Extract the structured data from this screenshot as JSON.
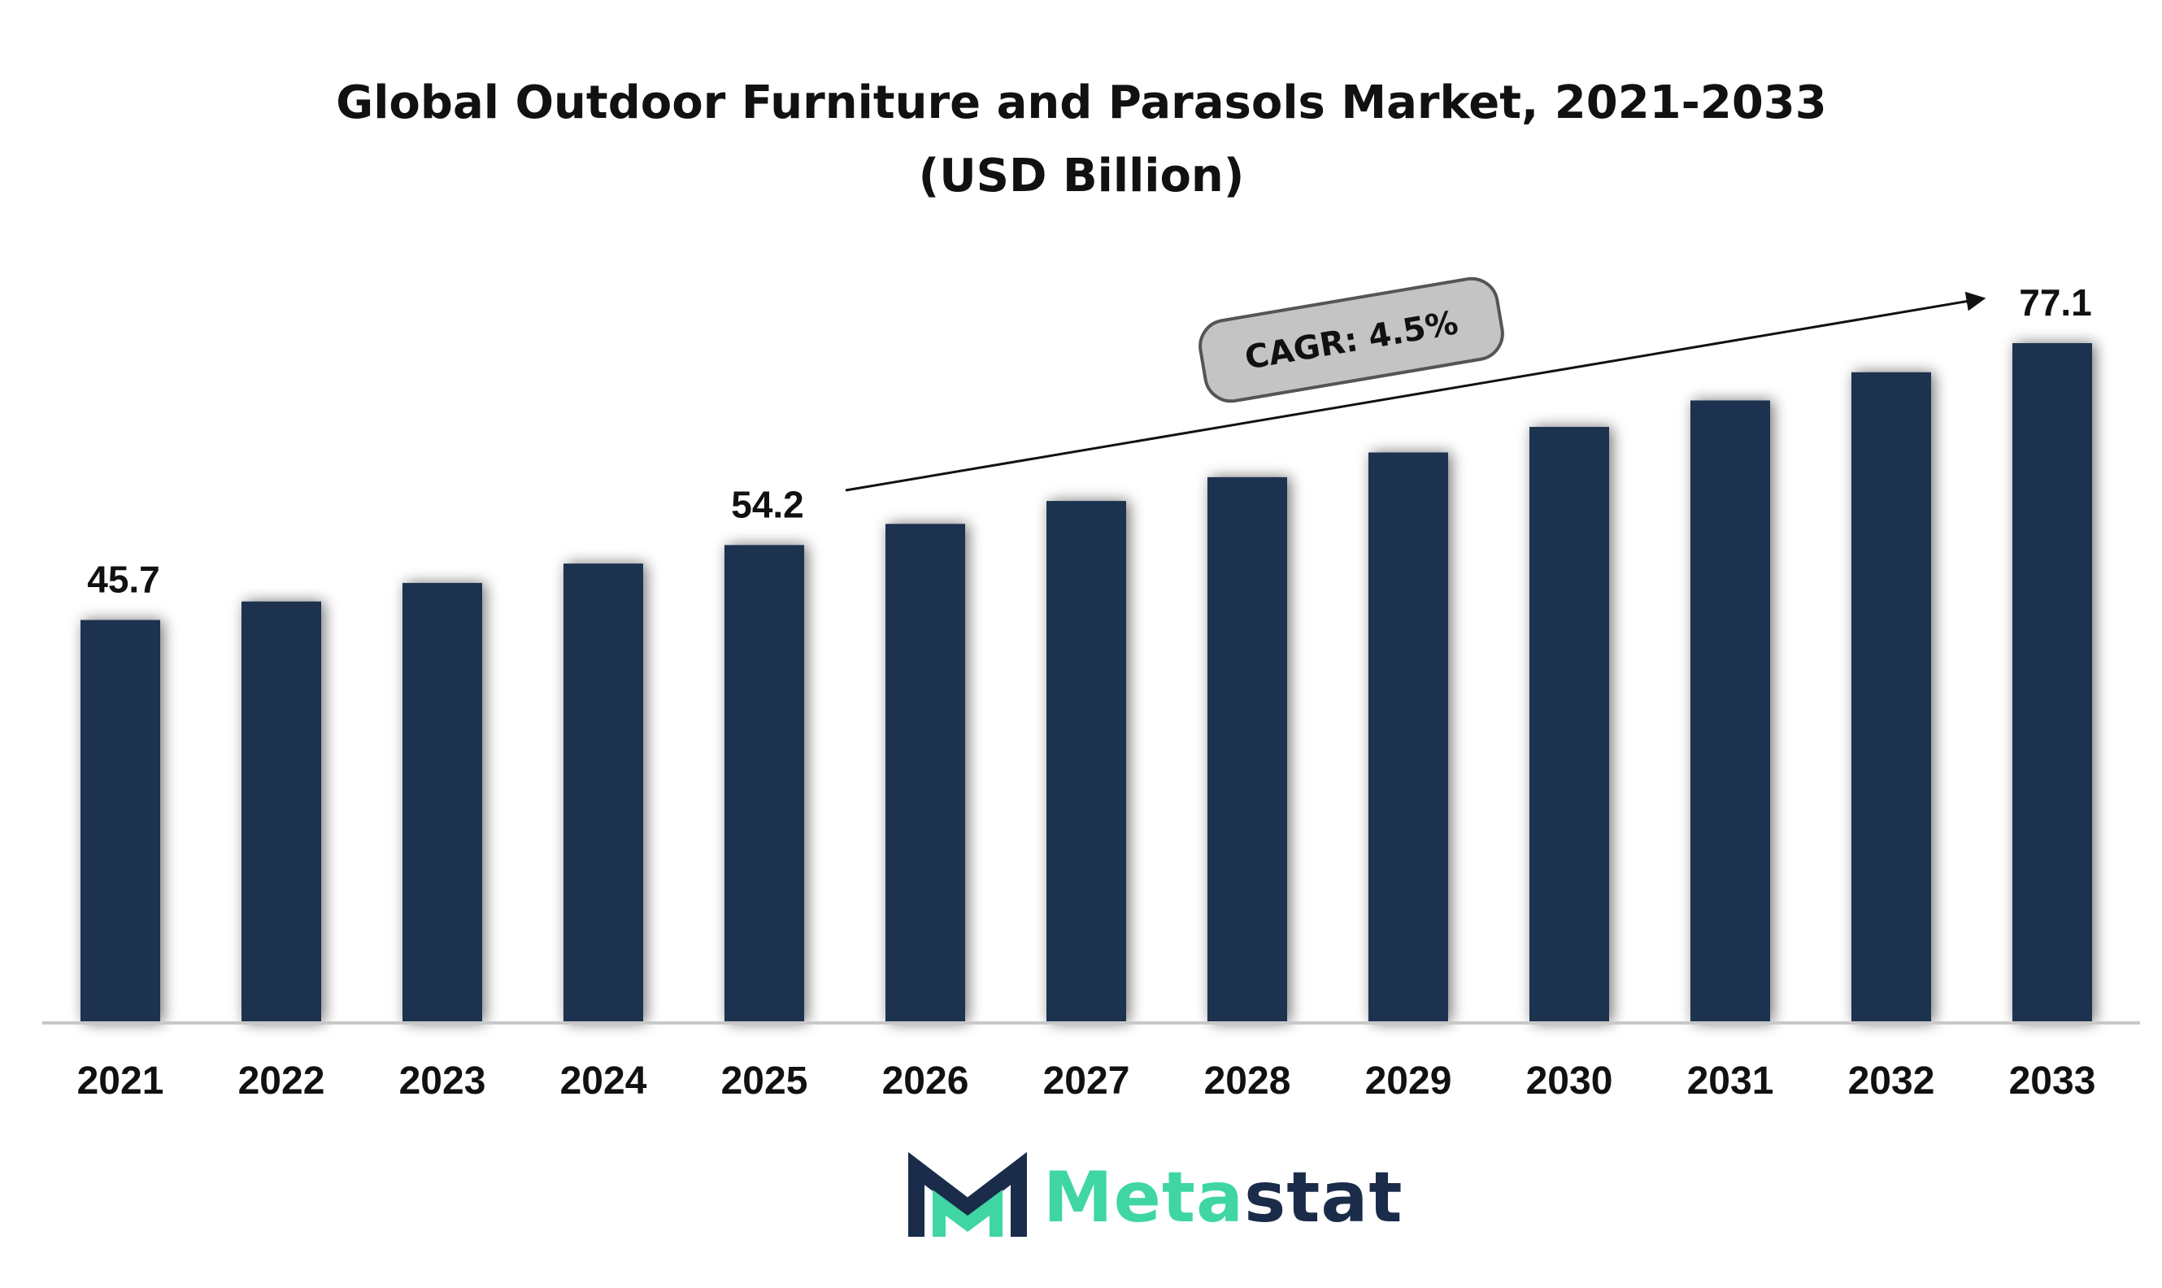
{
  "chart_data": {
    "type": "bar",
    "title": "Global Outdoor Furniture and Parasols Market, 2021-2033 (USD Billion)",
    "categories": [
      "2021",
      "2022",
      "2023",
      "2024",
      "2025",
      "2026",
      "2027",
      "2028",
      "2029",
      "2030",
      "2031",
      "2032",
      "2033"
    ],
    "values": [
      45.7,
      47.8,
      49.9,
      52.1,
      54.2,
      56.6,
      59.2,
      61.9,
      64.7,
      67.6,
      70.6,
      73.8,
      77.1
    ],
    "data_labels": [
      {
        "category": "2021",
        "text": "45.7"
      },
      {
        "category": "2025",
        "text": "54.2"
      },
      {
        "category": "2033",
        "text": "77.1"
      }
    ],
    "annotation": "CAGR: 4.5%",
    "bar_color": "#1b3350",
    "ylim": [
      0,
      77.1
    ],
    "grid": false,
    "legend": "none"
  },
  "logo": {
    "text_part1": "Meta",
    "text_part2": "stat",
    "accent_color": "#3fd6a4",
    "brand_color": "#1b2c4a"
  }
}
